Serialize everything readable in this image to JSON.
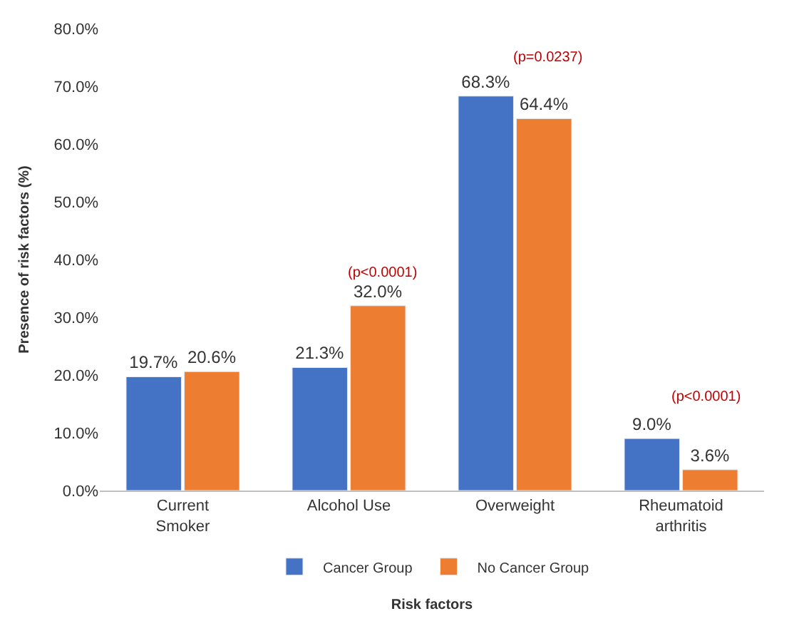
{
  "chart_data": {
    "type": "bar",
    "xlabel": "Risk factors",
    "ylabel": "Presence of risk factors (%)",
    "categories": [
      "Current Smoker",
      "Alcohol Use",
      "Overweight",
      "Rheumatoid arthritis"
    ],
    "series": [
      {
        "name": "Cancer Group",
        "color": "#4472c4",
        "values": [
          19.7,
          21.3,
          68.3,
          9.0
        ],
        "value_labels": [
          "19.7%",
          "21.3%",
          "68.3%",
          "9.0%"
        ]
      },
      {
        "name": "No Cancer Group",
        "color": "#ed7d31",
        "values": [
          20.6,
          32.0,
          64.4,
          3.6
        ],
        "value_labels": [
          "20.6%",
          "32.0%",
          "64.4%",
          "3.6%"
        ]
      }
    ],
    "ylim": [
      0,
      80
    ],
    "yticks": [
      {
        "value": 0,
        "label": "0.0%"
      },
      {
        "value": 10,
        "label": "10.0%"
      },
      {
        "value": 20,
        "label": "20.0%"
      },
      {
        "value": 30,
        "label": "30.0%"
      },
      {
        "value": 40,
        "label": "40.0%"
      },
      {
        "value": 50,
        "label": "50.0%"
      },
      {
        "value": 60,
        "label": "60.0%"
      },
      {
        "value": 70,
        "label": "70.0%"
      },
      {
        "value": 80,
        "label": "80.0%"
      }
    ],
    "annotations": [
      "(p<0.0001)",
      "(p=0.0237)",
      "(p<0.0001)"
    ],
    "legend": "bottom"
  }
}
